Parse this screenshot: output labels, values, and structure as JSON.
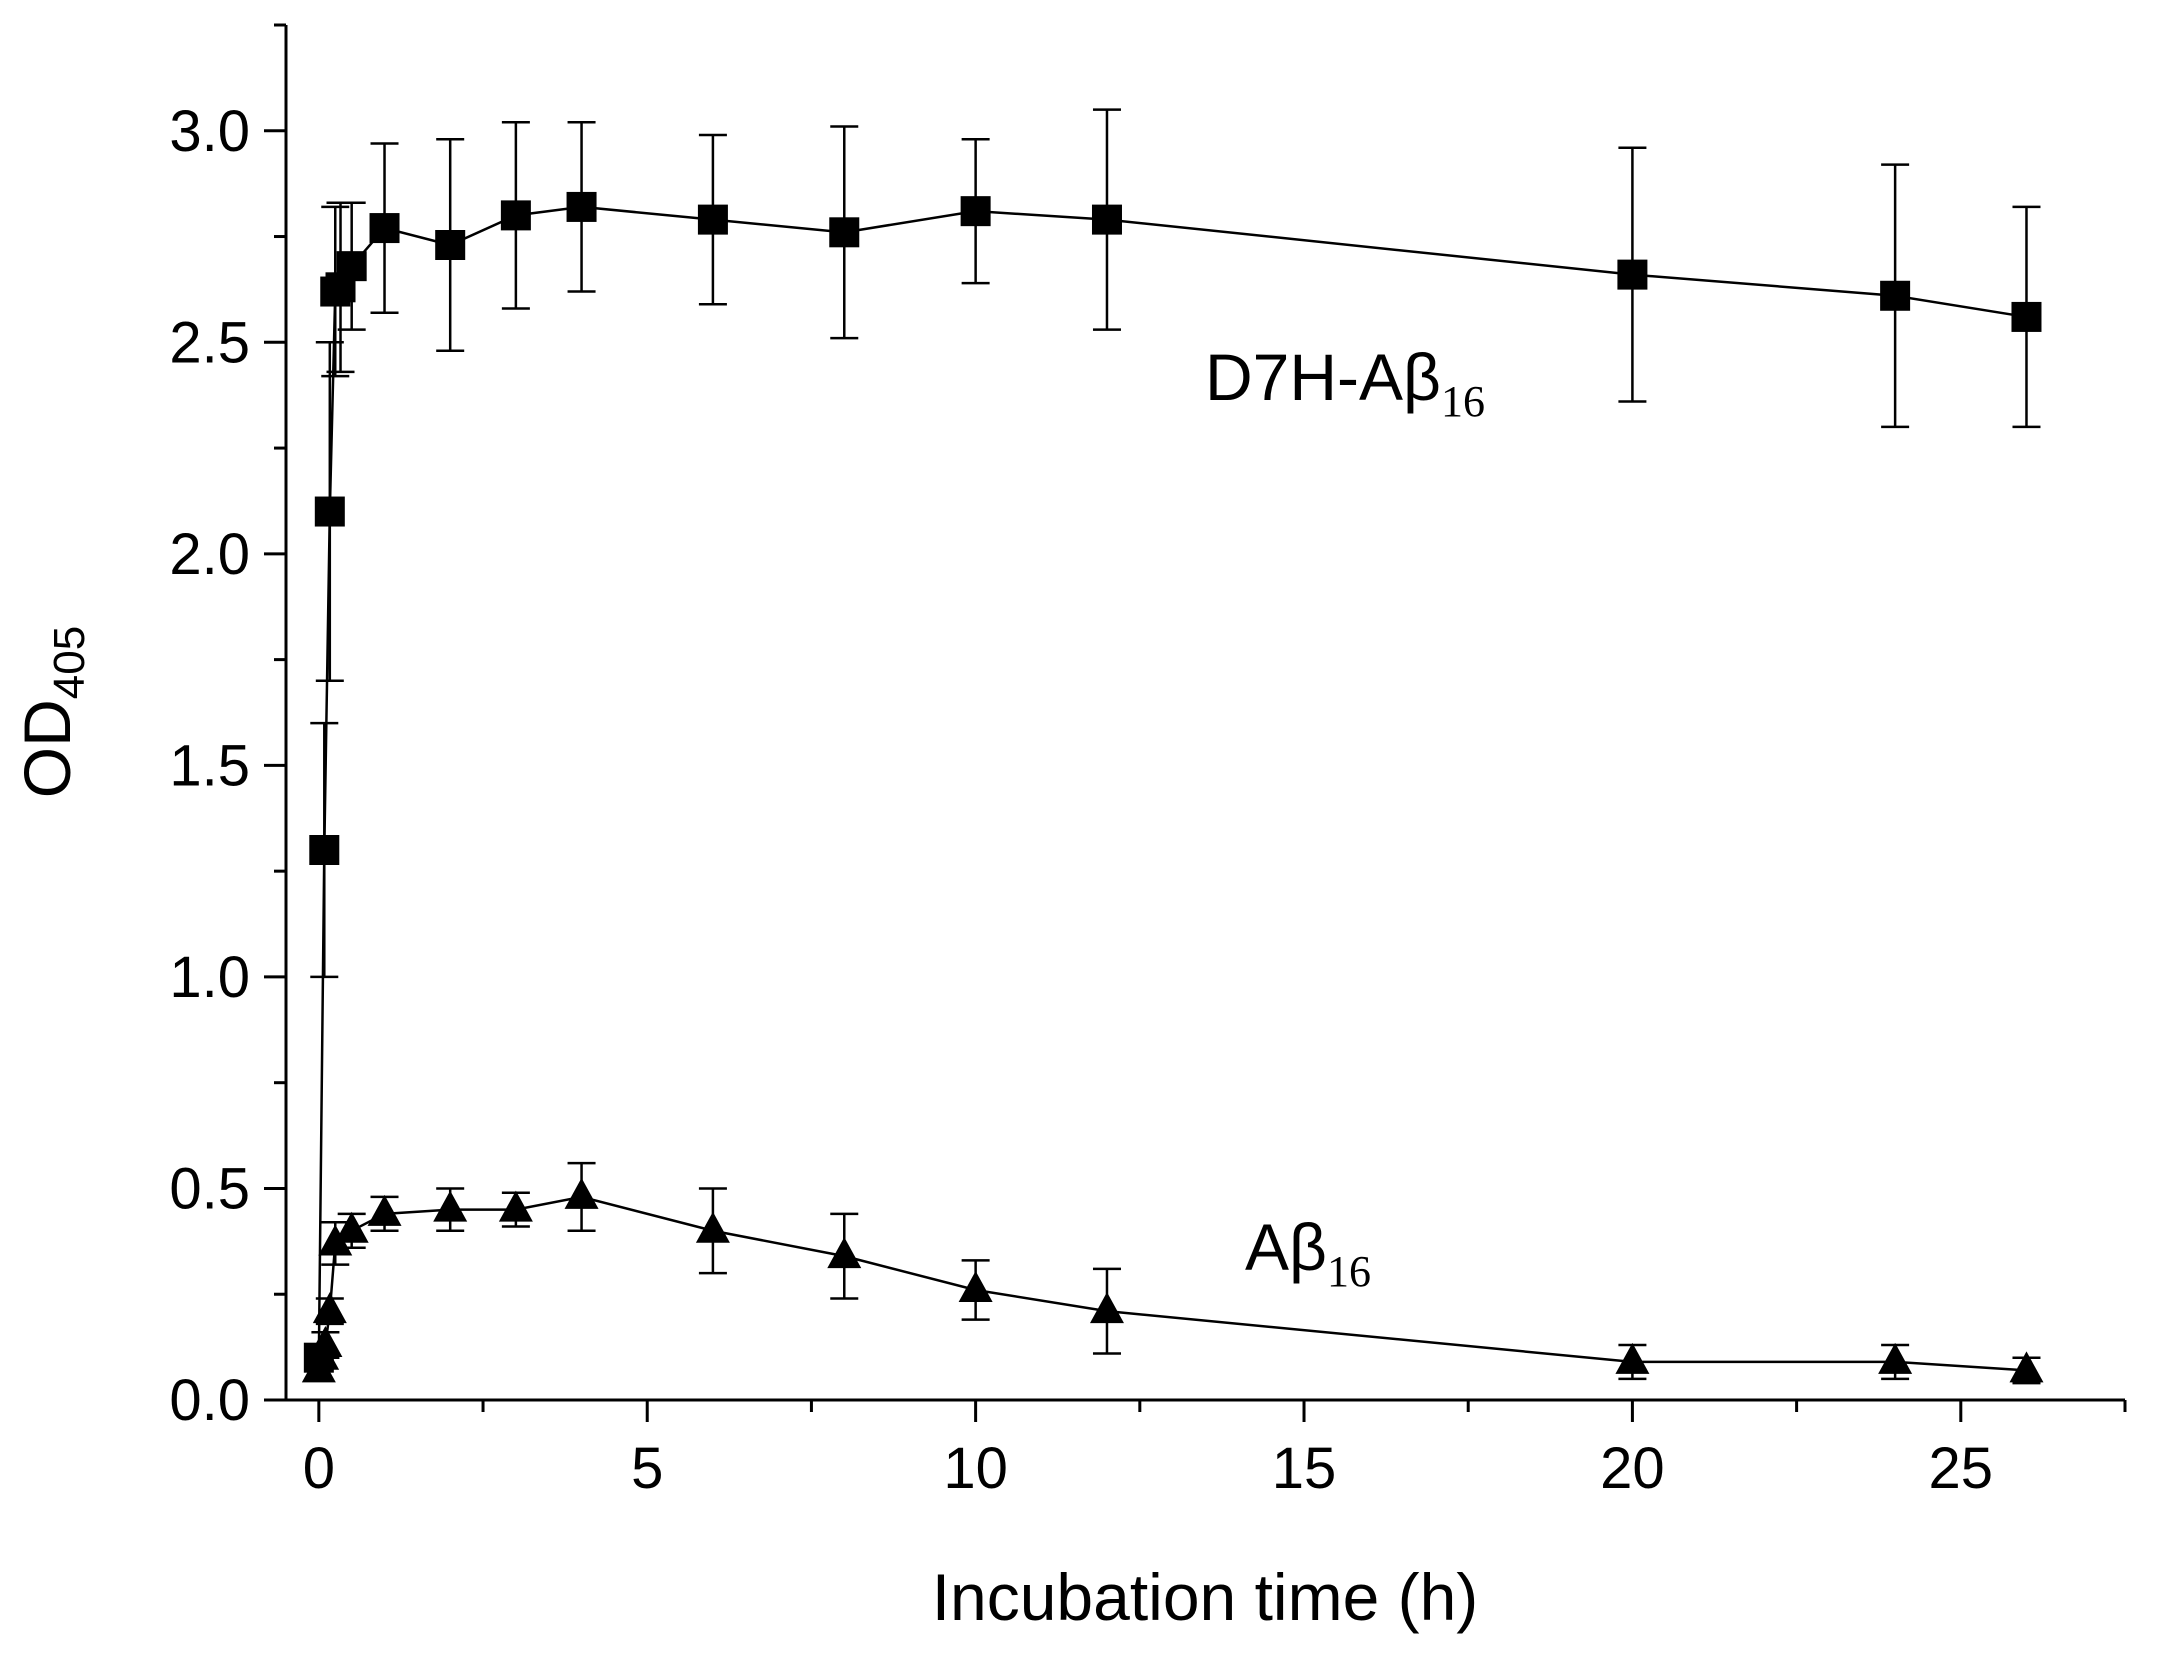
{
  "chart_data": {
    "type": "scatter",
    "x_label": "Incubation time (h)",
    "y_label": {
      "text": "OD",
      "subscript": "405"
    },
    "xlim": [
      -0.5,
      27.5
    ],
    "ylim": [
      0,
      3.25
    ],
    "xticks": [
      0,
      5,
      10,
      15,
      20,
      25
    ],
    "xminorticks": [
      2.5,
      7.5,
      12.5,
      17.5,
      22.5,
      27.5
    ],
    "yticks": [
      {
        "value": 0,
        "label": "0.0"
      },
      {
        "value": 0.5,
        "label": "0.5"
      },
      {
        "value": 1,
        "label": "1.0"
      },
      {
        "value": 1.5,
        "label": "1.5"
      },
      {
        "value": 2,
        "label": "2.0"
      },
      {
        "value": 2.5,
        "label": "2.5"
      },
      {
        "value": 3,
        "label": "3.0"
      }
    ],
    "yminorticks": [
      0.25,
      0.75,
      1.25,
      1.75,
      2.25,
      2.75,
      3.25
    ],
    "series": [
      {
        "name": "D7H-Aβ",
        "subscript": "16",
        "marker": "square",
        "color": "#000000",
        "x": [
          0,
          0.083,
          0.167,
          0.25,
          0.33,
          0.5,
          1,
          2,
          3,
          4,
          6,
          8,
          10,
          12,
          20,
          24,
          26
        ],
        "values": [
          0.1,
          1.3,
          2.1,
          2.62,
          2.63,
          2.68,
          2.77,
          2.73,
          2.8,
          2.82,
          2.79,
          2.76,
          2.81,
          2.79,
          2.66,
          2.61,
          2.56
        ],
        "errors": [
          0.02,
          0.3,
          0.4,
          0.2,
          0.2,
          0.15,
          0.2,
          0.25,
          0.22,
          0.2,
          0.2,
          0.25,
          0.17,
          0.26,
          0.3,
          0.31,
          0.26
        ]
      },
      {
        "name": "Aβ",
        "subscript": "16",
        "marker": "triangle",
        "color": "#000000",
        "x": [
          0,
          0.05,
          0.1,
          0.167,
          0.25,
          0.5,
          1,
          2,
          3,
          4,
          6,
          8,
          10,
          12,
          20,
          24,
          26
        ],
        "values": [
          0.07,
          0.1,
          0.13,
          0.21,
          0.37,
          0.4,
          0.44,
          0.45,
          0.45,
          0.48,
          0.4,
          0.34,
          0.26,
          0.21,
          0.09,
          0.09,
          0.07
        ],
        "errors": [
          0.02,
          0.02,
          0.03,
          0.03,
          0.05,
          0.04,
          0.04,
          0.05,
          0.04,
          0.08,
          0.1,
          0.1,
          0.07,
          0.1,
          0.04,
          0.04,
          0.03
        ]
      }
    ]
  }
}
